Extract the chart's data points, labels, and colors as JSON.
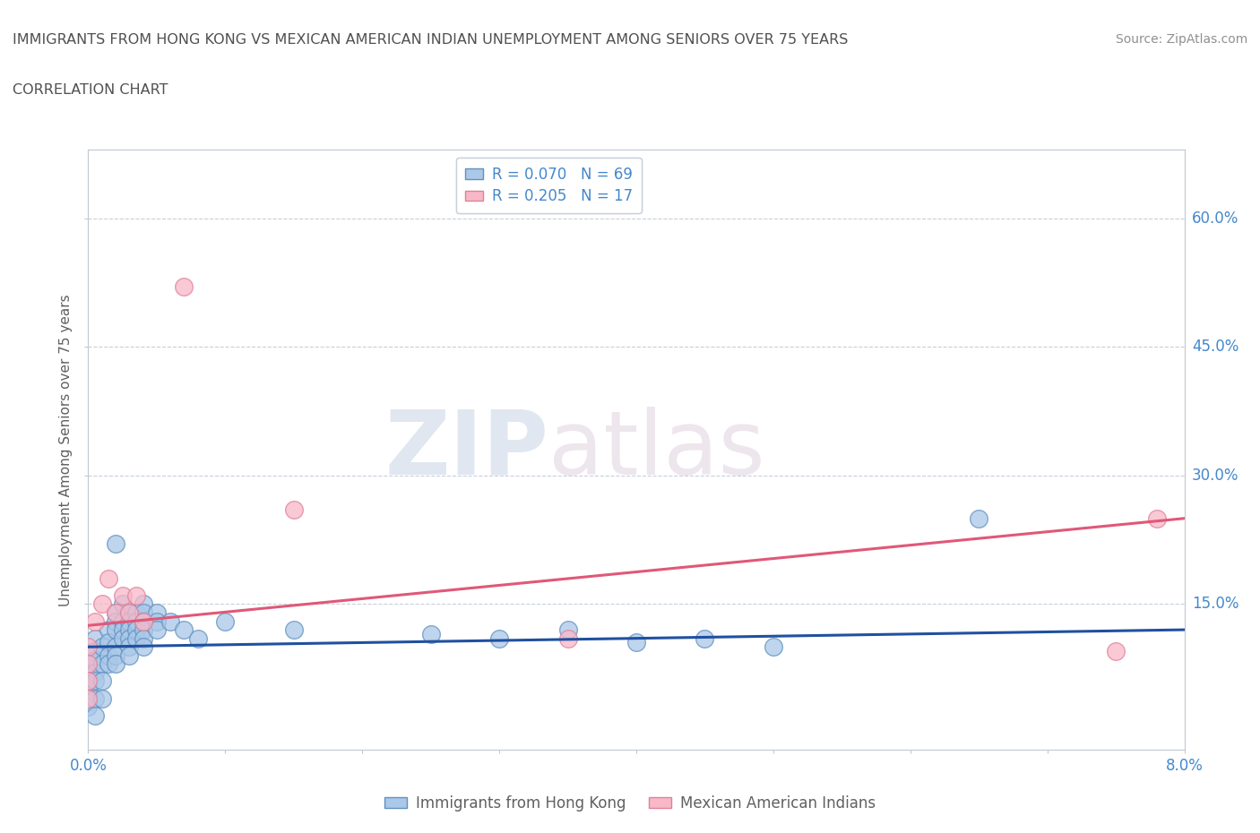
{
  "title": "IMMIGRANTS FROM HONG KONG VS MEXICAN AMERICAN INDIAN UNEMPLOYMENT AMONG SENIORS OVER 75 YEARS",
  "subtitle": "CORRELATION CHART",
  "source": "Source: ZipAtlas.com",
  "ylabel_labels": [
    "15.0%",
    "30.0%",
    "45.0%",
    "60.0%"
  ],
  "ytick_vals": [
    15.0,
    30.0,
    45.0,
    60.0
  ],
  "xlim": [
    0.0,
    8.0
  ],
  "ylim": [
    -2.0,
    68.0
  ],
  "ylabel_text": "Unemployment Among Seniors over 75 years",
  "legend_entries": [
    {
      "label": "R = 0.070   N = 69",
      "color": "#aac8e8"
    },
    {
      "label": "R = 0.205   N = 17",
      "color": "#f8b8c8"
    }
  ],
  "legend_bottom": [
    "Immigrants from Hong Kong",
    "Mexican American Indians"
  ],
  "watermark_zip": "ZIP",
  "watermark_atlas": "atlas",
  "blue_color": "#aac8e8",
  "pink_color": "#f8b8c8",
  "blue_edge_color": "#6090c0",
  "pink_edge_color": "#e08098",
  "blue_line_color": "#2050a0",
  "pink_line_color": "#e05878",
  "title_color": "#505050",
  "subtitle_color": "#505050",
  "axis_label_color": "#4488cc",
  "grid_color": "#c8d0dc",
  "source_color": "#909090",
  "blue_scatter": [
    [
      0.0,
      9.0
    ],
    [
      0.0,
      8.0
    ],
    [
      0.0,
      7.5
    ],
    [
      0.0,
      7.0
    ],
    [
      0.0,
      6.5
    ],
    [
      0.0,
      6.0
    ],
    [
      0.0,
      5.5
    ],
    [
      0.0,
      5.0
    ],
    [
      0.0,
      4.5
    ],
    [
      0.0,
      4.0
    ],
    [
      0.0,
      3.5
    ],
    [
      0.0,
      3.0
    ],
    [
      0.05,
      11.0
    ],
    [
      0.05,
      9.5
    ],
    [
      0.05,
      8.5
    ],
    [
      0.05,
      7.0
    ],
    [
      0.05,
      6.0
    ],
    [
      0.05,
      4.0
    ],
    [
      0.05,
      2.0
    ],
    [
      0.1,
      10.0
    ],
    [
      0.1,
      8.0
    ],
    [
      0.1,
      6.0
    ],
    [
      0.1,
      4.0
    ],
    [
      0.15,
      12.0
    ],
    [
      0.15,
      10.5
    ],
    [
      0.15,
      9.0
    ],
    [
      0.15,
      8.0
    ],
    [
      0.2,
      22.0
    ],
    [
      0.2,
      14.0
    ],
    [
      0.2,
      13.0
    ],
    [
      0.2,
      12.0
    ],
    [
      0.2,
      10.0
    ],
    [
      0.2,
      9.0
    ],
    [
      0.2,
      8.0
    ],
    [
      0.25,
      15.0
    ],
    [
      0.25,
      13.0
    ],
    [
      0.25,
      12.0
    ],
    [
      0.25,
      11.0
    ],
    [
      0.3,
      14.0
    ],
    [
      0.3,
      13.0
    ],
    [
      0.3,
      12.0
    ],
    [
      0.3,
      11.0
    ],
    [
      0.3,
      10.0
    ],
    [
      0.3,
      9.0
    ],
    [
      0.35,
      14.0
    ],
    [
      0.35,
      13.0
    ],
    [
      0.35,
      12.0
    ],
    [
      0.35,
      11.0
    ],
    [
      0.4,
      15.0
    ],
    [
      0.4,
      14.0
    ],
    [
      0.4,
      13.0
    ],
    [
      0.4,
      12.0
    ],
    [
      0.4,
      11.0
    ],
    [
      0.4,
      10.0
    ],
    [
      0.5,
      14.0
    ],
    [
      0.5,
      13.0
    ],
    [
      0.5,
      12.0
    ],
    [
      0.6,
      13.0
    ],
    [
      0.7,
      12.0
    ],
    [
      0.8,
      11.0
    ],
    [
      1.0,
      13.0
    ],
    [
      1.5,
      12.0
    ],
    [
      2.5,
      11.5
    ],
    [
      3.0,
      11.0
    ],
    [
      3.5,
      12.0
    ],
    [
      4.0,
      10.5
    ],
    [
      4.5,
      11.0
    ],
    [
      5.0,
      10.0
    ],
    [
      6.5,
      25.0
    ]
  ],
  "pink_scatter": [
    [
      0.0,
      10.0
    ],
    [
      0.0,
      8.0
    ],
    [
      0.0,
      6.0
    ],
    [
      0.0,
      4.0
    ],
    [
      0.05,
      13.0
    ],
    [
      0.1,
      15.0
    ],
    [
      0.15,
      18.0
    ],
    [
      0.2,
      14.0
    ],
    [
      0.25,
      16.0
    ],
    [
      0.3,
      14.0
    ],
    [
      0.35,
      16.0
    ],
    [
      0.4,
      13.0
    ],
    [
      0.7,
      52.0
    ],
    [
      1.5,
      26.0
    ],
    [
      3.5,
      11.0
    ],
    [
      7.5,
      9.5
    ],
    [
      7.8,
      25.0
    ]
  ],
  "blue_trend_x": [
    0.0,
    8.0
  ],
  "blue_trend_y": [
    10.0,
    12.0
  ],
  "pink_trend_x": [
    0.0,
    8.0
  ],
  "pink_trend_y": [
    12.5,
    25.0
  ]
}
